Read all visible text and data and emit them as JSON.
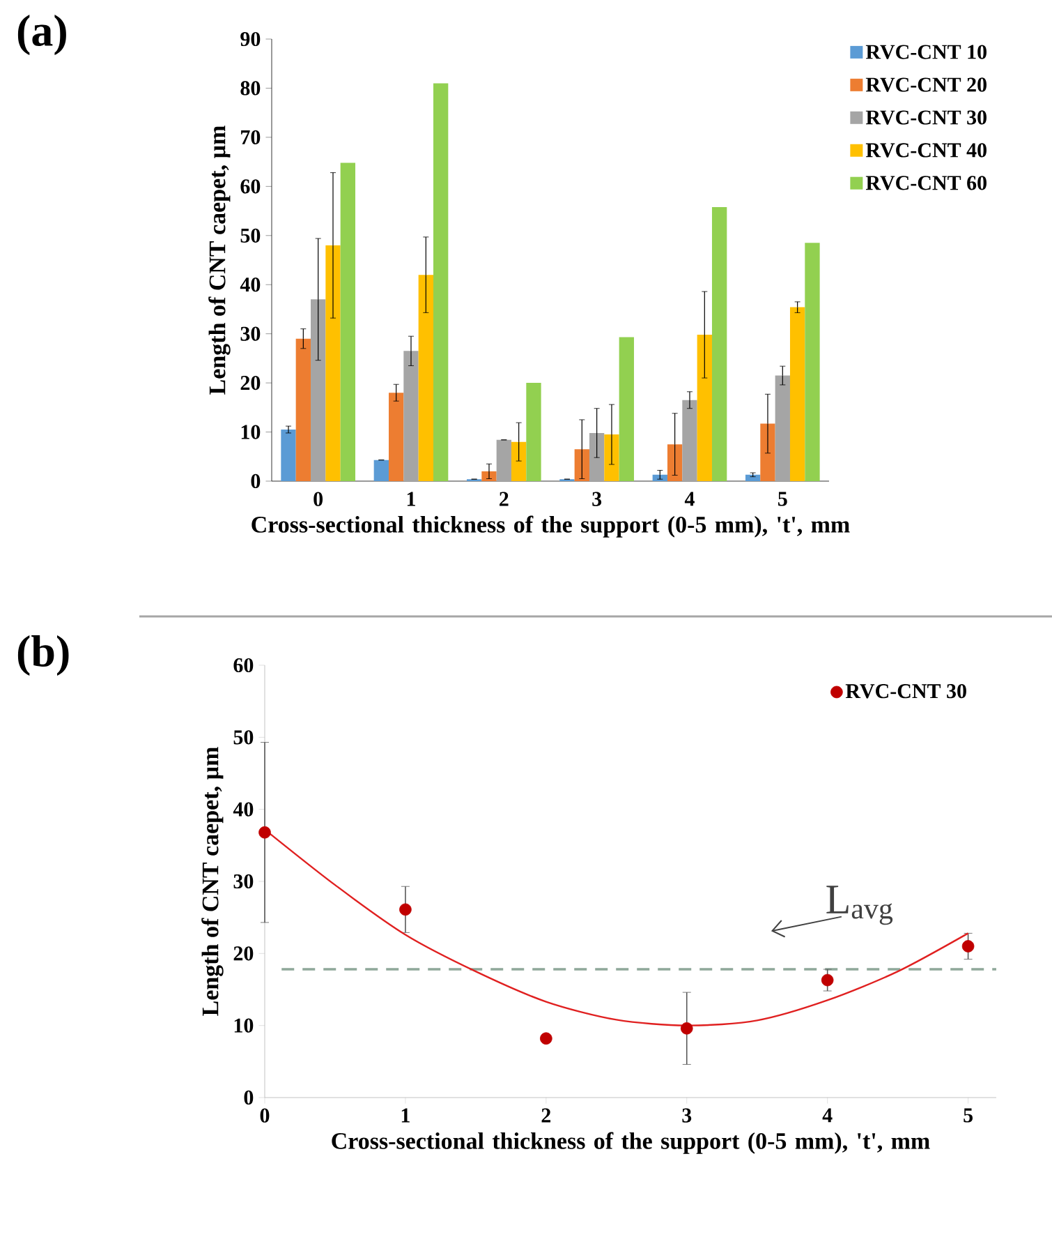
{
  "chart_data": [
    {
      "type": "bar",
      "xlabel": "Cross-sectional thickness of the support (0-5 mm), 't', mm",
      "ylabel": "Length of CNT caepet, µm",
      "annotations": [
        "(a)"
      ],
      "categories": [
        "0",
        "1",
        "2",
        "3",
        "4",
        "5"
      ],
      "ylim": [
        0,
        90
      ],
      "yticks": [
        0,
        10,
        20,
        30,
        40,
        50,
        60,
        70,
        80,
        90
      ],
      "grid": false,
      "legend": "right",
      "series": [
        {
          "name": "RVC-CNT 10",
          "color": "#5b9bd5",
          "values": [
            10.5,
            4.3,
            0.4,
            0.4,
            1.3,
            1.3
          ],
          "errors": [
            0.7,
            null,
            null,
            null,
            0.9,
            0.4
          ]
        },
        {
          "name": "RVC-CNT 20",
          "color": "#ed7d31",
          "values": [
            29,
            18,
            2,
            6.5,
            7.5,
            11.7
          ],
          "errors": [
            2,
            1.7,
            1.5,
            6,
            6.3,
            6
          ]
        },
        {
          "name": "RVC-CNT 30",
          "color": "#a5a5a5",
          "values": [
            37,
            26.5,
            8.4,
            9.8,
            16.5,
            21.5
          ],
          "errors": [
            12.4,
            3,
            null,
            5,
            1.7,
            1.9
          ]
        },
        {
          "name": "RVC-CNT 40",
          "color": "#ffc000",
          "values": [
            48,
            42,
            8,
            9.5,
            29.8,
            35.4
          ],
          "errors": [
            14.8,
            7.7,
            3.9,
            6.1,
            8.8,
            1.1
          ]
        },
        {
          "name": "RVC-CNT 60",
          "color": "#92d050",
          "values": [
            64.8,
            81,
            20,
            29.3,
            55.8,
            48.5
          ]
        }
      ]
    },
    {
      "type": "scatter",
      "xlabel": "Cross-sectional thickness of the support (0-5 mm), 't', mm",
      "ylabel": "Length of CNT caepet, µm",
      "annotations": [
        "(b)"
      ],
      "x": [
        0,
        1,
        2,
        3,
        4,
        5
      ],
      "xlim": [
        0,
        5.2
      ],
      "xticks": [
        0,
        1,
        2,
        3,
        4,
        5
      ],
      "ylim": [
        0,
        60
      ],
      "yticks": [
        0,
        10,
        20,
        30,
        40,
        50,
        60
      ],
      "grid": false,
      "legend": "top right",
      "marker": "circle",
      "ref_lines": [
        {
          "axis": "y",
          "value": 17.8,
          "label": "L$_{avg}$",
          "color": "#8fa89a",
          "line_style": "dashed"
        }
      ],
      "series": [
        {
          "name": "RVC-CNT 30",
          "color": "#c00000",
          "values": [
            36.8,
            26.1,
            8.2,
            9.6,
            16.3,
            21.0
          ],
          "errors": [
            12.5,
            3.2,
            null,
            5,
            1.5,
            1.8
          ]
        },
        {
          "type": "line",
          "marker": "none",
          "color": "#e02020",
          "x": [
            0,
            0.5,
            1,
            1.5,
            2,
            2.5,
            3,
            3.5,
            4,
            4.5,
            5
          ],
          "values": [
            37.2,
            29.5,
            22.6,
            17.5,
            13.3,
            10.8,
            10,
            10.7,
            13.5,
            17.5,
            22.8
          ]
        }
      ]
    }
  ]
}
